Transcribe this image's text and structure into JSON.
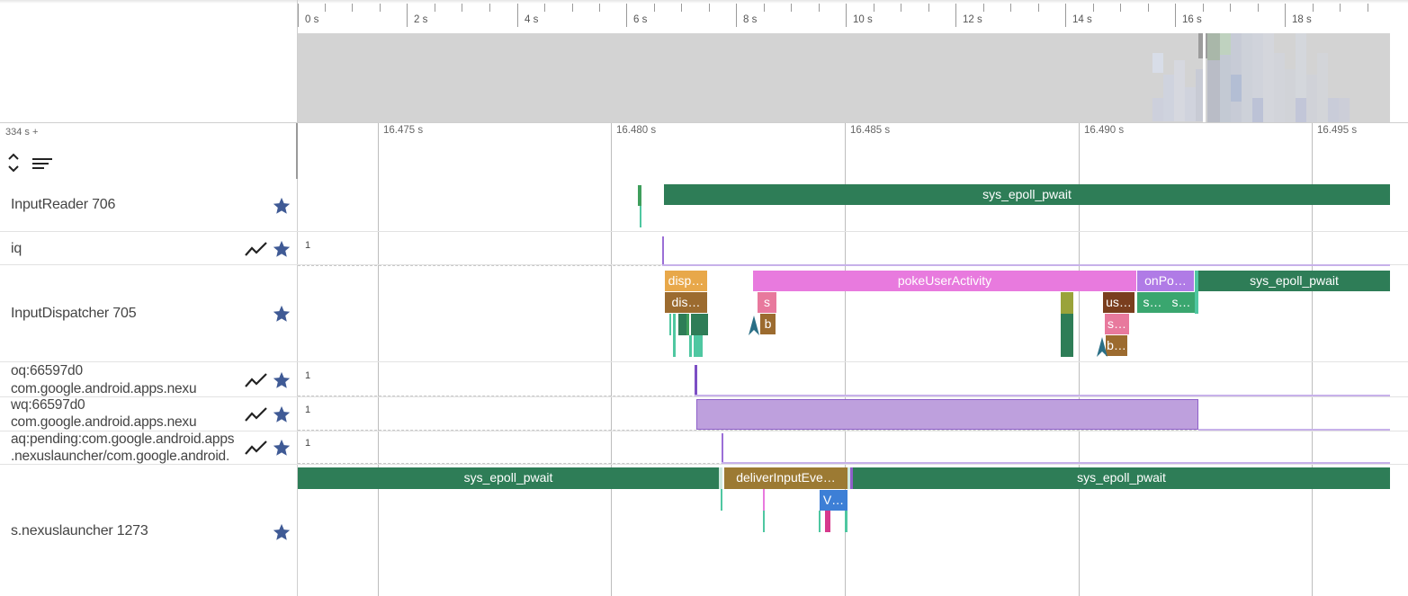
{
  "overview": {
    "tick_labels": [
      "0 s",
      "2 s",
      "4 s",
      "6 s",
      "8 s",
      "10 s",
      "12 s",
      "14 s",
      "16 s",
      "18 s"
    ]
  },
  "detail": {
    "offset_label": "334 s +",
    "tick_labels": [
      "16.475 s",
      "16.480 s",
      "16.485 s",
      "16.490 s",
      "16.495 s"
    ]
  },
  "tracks": [
    {
      "label": "InputReader 706",
      "type": "thread"
    },
    {
      "label": "iq",
      "type": "counter",
      "value_label": "1"
    },
    {
      "label": "InputDispatcher 705",
      "type": "thread"
    },
    {
      "label_line1": "oq:66597d0",
      "label_line2": "com.google.android.apps.nexu",
      "type": "counter",
      "value_label": "1"
    },
    {
      "label_line1": "wq:66597d0",
      "label_line2": "com.google.android.apps.nexu",
      "type": "counter",
      "value_label": "1"
    },
    {
      "label_line1": "aq:pending:com.google.android.apps",
      "label_line2": ".nexuslauncher/com.google.android.",
      "type": "counter",
      "value_label": "1"
    },
    {
      "label": "s.nexuslauncher 1273",
      "type": "thread"
    }
  ],
  "slices": {
    "input_reader": {
      "epoll": "sys_epoll_pwait"
    },
    "input_dispatcher": {
      "disp": "disp…",
      "dis": "dis…",
      "poke": "pokeUserActivity",
      "s": "s",
      "b": "b",
      "us": "us…",
      "s2": "s…",
      "b2": "b…",
      "onpo": "onPo…",
      "s3": "s…",
      "s4": "s…",
      "epoll": "sys_epoll_pwait"
    },
    "launcher": {
      "epoll1": "sys_epoll_pwait",
      "deliver": "deliverInputEve…",
      "v": "V…",
      "epoll2": "sys_epoll_pwait"
    }
  },
  "colors": {
    "epoll_green": "#2e7d57",
    "pink": "#e87ade",
    "orange": "#e8a84a",
    "brown": "#9c6b2f",
    "purple_counter": "#a07cd8",
    "star_blue": "#3f5a95"
  },
  "icons": [
    "star-icon",
    "line-chart-icon",
    "expand-collapse-icon",
    "sort-lines-icon"
  ]
}
